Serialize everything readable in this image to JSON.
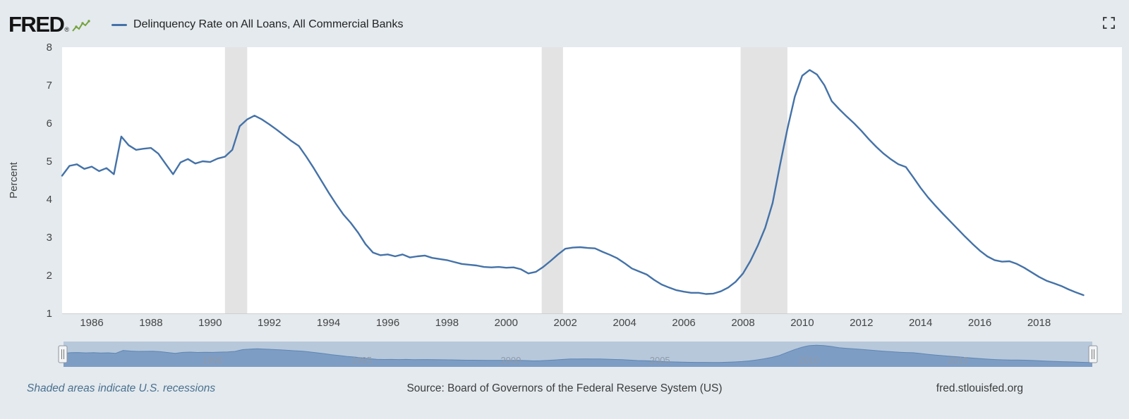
{
  "header": {
    "logo_text": "FRED",
    "registered_mark": "®",
    "legend_label": "Delinquency Rate on All Loans, All Commercial Banks"
  },
  "footer": {
    "recessions_note": "Shaded areas indicate U.S. recessions",
    "source": "Source: Board of Governors of the Federal Reserve System (US)",
    "site_link": "fred.stlouisfed.org"
  },
  "icons": {
    "fred_logo_chart_icon": "green-line-chart-sparkline",
    "fullscreen_icon": "expand-corners",
    "slider_handle_icon": "grip-lines"
  },
  "chart_data": {
    "type": "line",
    "title": "Delinquency Rate on All Loans, All Commercial Banks",
    "ylabel": "Percent",
    "ylim": [
      1,
      8
    ],
    "yticks": [
      1,
      2,
      3,
      4,
      5,
      6,
      7,
      8
    ],
    "xlim": [
      1985,
      2020.8
    ],
    "xticks": [
      1986,
      1988,
      1990,
      1992,
      1994,
      1996,
      1998,
      2000,
      2002,
      2004,
      2006,
      2008,
      2010,
      2012,
      2014,
      2016,
      2018
    ],
    "grid": false,
    "legend_position": "top-left",
    "recessions": [
      [
        1990.5,
        1991.25
      ],
      [
        2001.2,
        2001.92
      ],
      [
        2007.92,
        2009.5
      ]
    ],
    "series": [
      {
        "name": "Delinquency Rate on All Loans, All Commercial Banks",
        "x_start": 1985.0,
        "x_step": 0.25,
        "values": [
          4.62,
          4.88,
          4.92,
          4.8,
          4.86,
          4.74,
          4.82,
          4.66,
          5.65,
          5.42,
          5.3,
          5.33,
          5.35,
          5.2,
          4.93,
          4.66,
          4.97,
          5.06,
          4.94,
          5.0,
          4.98,
          5.07,
          5.12,
          5.3,
          5.92,
          6.1,
          6.2,
          6.1,
          5.97,
          5.83,
          5.68,
          5.53,
          5.4,
          5.12,
          4.82,
          4.5,
          4.18,
          3.88,
          3.6,
          3.38,
          3.12,
          2.82,
          2.6,
          2.53,
          2.55,
          2.5,
          2.55,
          2.47,
          2.5,
          2.52,
          2.46,
          2.43,
          2.4,
          2.35,
          2.3,
          2.28,
          2.26,
          2.22,
          2.21,
          2.22,
          2.2,
          2.21,
          2.16,
          2.05,
          2.09,
          2.22,
          2.38,
          2.55,
          2.7,
          2.73,
          2.74,
          2.72,
          2.71,
          2.62,
          2.54,
          2.45,
          2.32,
          2.18,
          2.1,
          2.02,
          1.88,
          1.76,
          1.68,
          1.61,
          1.57,
          1.54,
          1.54,
          1.51,
          1.52,
          1.58,
          1.68,
          1.83,
          2.05,
          2.38,
          2.78,
          3.25,
          3.9,
          4.9,
          5.85,
          6.7,
          7.25,
          7.4,
          7.28,
          7.0,
          6.58,
          6.37,
          6.18,
          6.0,
          5.8,
          5.58,
          5.38,
          5.2,
          5.05,
          4.92,
          4.85,
          4.58,
          4.3,
          4.05,
          3.83,
          3.62,
          3.42,
          3.22,
          3.02,
          2.83,
          2.65,
          2.5,
          2.4,
          2.36,
          2.37,
          2.3,
          2.2,
          2.08,
          1.96,
          1.86,
          1.79,
          1.72,
          1.63,
          1.55,
          1.48
        ]
      }
    ],
    "slider": {
      "ticks": [
        1990,
        1995,
        2000,
        2005,
        2010,
        2015
      ],
      "value_range": [
        0,
        8.2
      ],
      "selected_range": [
        1985,
        2019.5
      ]
    },
    "colors": {
      "line": "#4472a8",
      "recession_band": "#e3e3e3",
      "plot_background": "#ffffff",
      "page_background": "#e4eaee",
      "slider_background": "#b7c8db",
      "slider_area": "#7e9dc5",
      "slider_line": "#5d86b2",
      "recession_note_link": "#4a708f"
    }
  }
}
